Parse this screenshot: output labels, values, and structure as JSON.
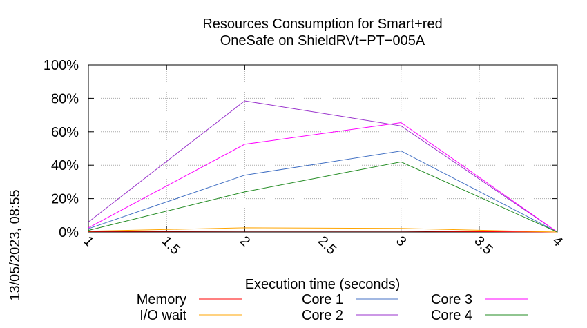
{
  "chart_data": {
    "type": "line",
    "title_line1": "Resources Consumption for Smart+red",
    "title_line2": "OneSafe on ShieldRVt−PT−005A",
    "xlabel": "Execution time (seconds)",
    "ylabel": "",
    "side_label": "13/05/2023, 08:55",
    "xlim": [
      1,
      4
    ],
    "ylim": [
      0,
      100
    ],
    "x_ticks": [
      1,
      1.5,
      2,
      2.5,
      3,
      3.5,
      4
    ],
    "x_tick_labels": [
      "1",
      "1.5",
      "2",
      "2.5",
      "3",
      "3.5",
      "4"
    ],
    "y_ticks": [
      0,
      20,
      40,
      60,
      80,
      100
    ],
    "y_tick_labels": [
      "0%",
      "20%",
      "40%",
      "60%",
      "80%",
      "100%"
    ],
    "grid": true,
    "legend_position": "bottom",
    "x": [
      1,
      2,
      3,
      4
    ],
    "series": [
      {
        "name": "Memory",
        "color": "#ff0000",
        "values": [
          0.3,
          0.5,
          0.5,
          0
        ]
      },
      {
        "name": "I/O wait",
        "color": "#ffa500",
        "values": [
          0.5,
          2.5,
          2.2,
          0
        ]
      },
      {
        "name": "Core 1",
        "color": "#4472c4",
        "values": [
          2,
          34,
          48.5,
          0
        ]
      },
      {
        "name": "Core 2",
        "color": "#9932cc",
        "values": [
          6,
          78.5,
          63.5,
          0
        ]
      },
      {
        "name": "Core 3",
        "color": "#ff00ff",
        "values": [
          2.5,
          52.5,
          65.5,
          0
        ]
      },
      {
        "name": "Core 4",
        "color": "#228b22",
        "values": [
          1,
          24,
          42,
          0
        ]
      }
    ]
  }
}
